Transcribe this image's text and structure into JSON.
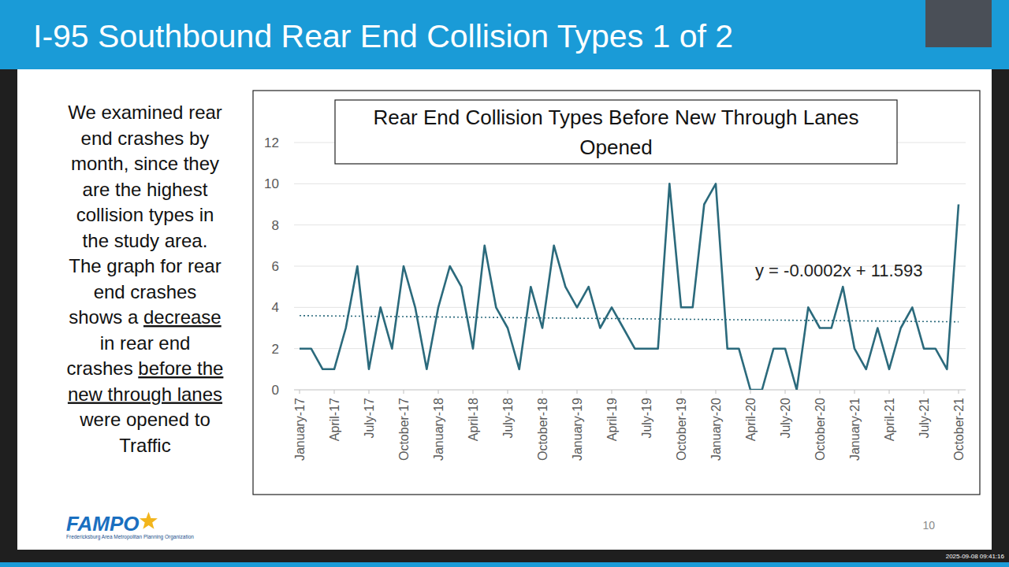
{
  "slide": {
    "title": "I-95 Southbound Rear End Collision Types 1 of 2",
    "body": [
      [
        {
          "text": "We examined rear"
        }
      ],
      [
        {
          "text": "end crashes by"
        }
      ],
      [
        {
          "text": "month, since they"
        }
      ],
      [
        {
          "text": "are the highest"
        }
      ],
      [
        {
          "text": "collision types in"
        }
      ],
      [
        {
          "text": "the study area."
        }
      ],
      [
        {
          "text": "The graph for rear"
        }
      ],
      [
        {
          "text": "end crashes"
        }
      ],
      [
        {
          "text": "shows a "
        },
        {
          "text": "decrease",
          "underline": true
        }
      ],
      [
        {
          "text": "in rear end"
        }
      ],
      [
        {
          "text": "crashes "
        },
        {
          "text": "before the",
          "underline": true
        }
      ],
      [
        {
          "text": "new through lanes",
          "underline": true
        }
      ],
      [
        {
          "text": "were opened to"
        }
      ],
      [
        {
          "text": "Traffic"
        }
      ]
    ],
    "logo": "FAMPO",
    "logo_subtitle": "Fredericksburg Area Metropolitan Planning Organization",
    "page_number": 10,
    "timestamp": "2025-09-08 09:41:16"
  },
  "chart_data": {
    "type": "line",
    "title": "Rear End Collision Types Before New Through Lanes Opened",
    "categories": [
      "January-17",
      null,
      null,
      "April-17",
      null,
      null,
      "July-17",
      null,
      null,
      "October-17",
      null,
      null,
      "January-18",
      null,
      null,
      "April-18",
      null,
      null,
      "July-18",
      null,
      null,
      "October-18",
      null,
      null,
      "January-19",
      null,
      null,
      "April-19",
      null,
      null,
      "July-19",
      null,
      null,
      "October-19",
      null,
      null,
      "January-20",
      null,
      null,
      "April-20",
      null,
      null,
      "July-20",
      null,
      null,
      "October-20",
      null,
      null,
      "January-21",
      null,
      null,
      "April-21",
      null,
      null,
      "July-21",
      null,
      null,
      "October-21"
    ],
    "series": [
      {
        "name": "Rear End",
        "color": "#2b6a7c",
        "values": [
          2,
          2,
          1,
          1,
          3,
          6,
          1,
          4,
          2,
          6,
          4,
          1,
          4,
          6,
          5,
          2,
          7,
          4,
          3,
          1,
          5,
          3,
          7,
          5,
          4,
          5,
          3,
          4,
          3,
          2,
          2,
          2,
          10,
          4,
          4,
          9,
          10,
          2,
          2,
          0,
          0,
          2,
          2,
          0,
          4,
          3,
          3,
          5,
          2,
          1,
          3,
          1,
          3,
          4,
          2,
          2,
          1,
          9
        ]
      }
    ],
    "trendline": {
      "label": "y = -0.0002x + 11.593",
      "start_value": 3.6,
      "end_value": 3.3,
      "color": "#2b6a7c",
      "line_style": "dotted"
    },
    "ylim": [
      0,
      12
    ],
    "yticks": [
      0,
      2,
      4,
      6,
      8,
      10,
      12
    ],
    "grid": true
  }
}
